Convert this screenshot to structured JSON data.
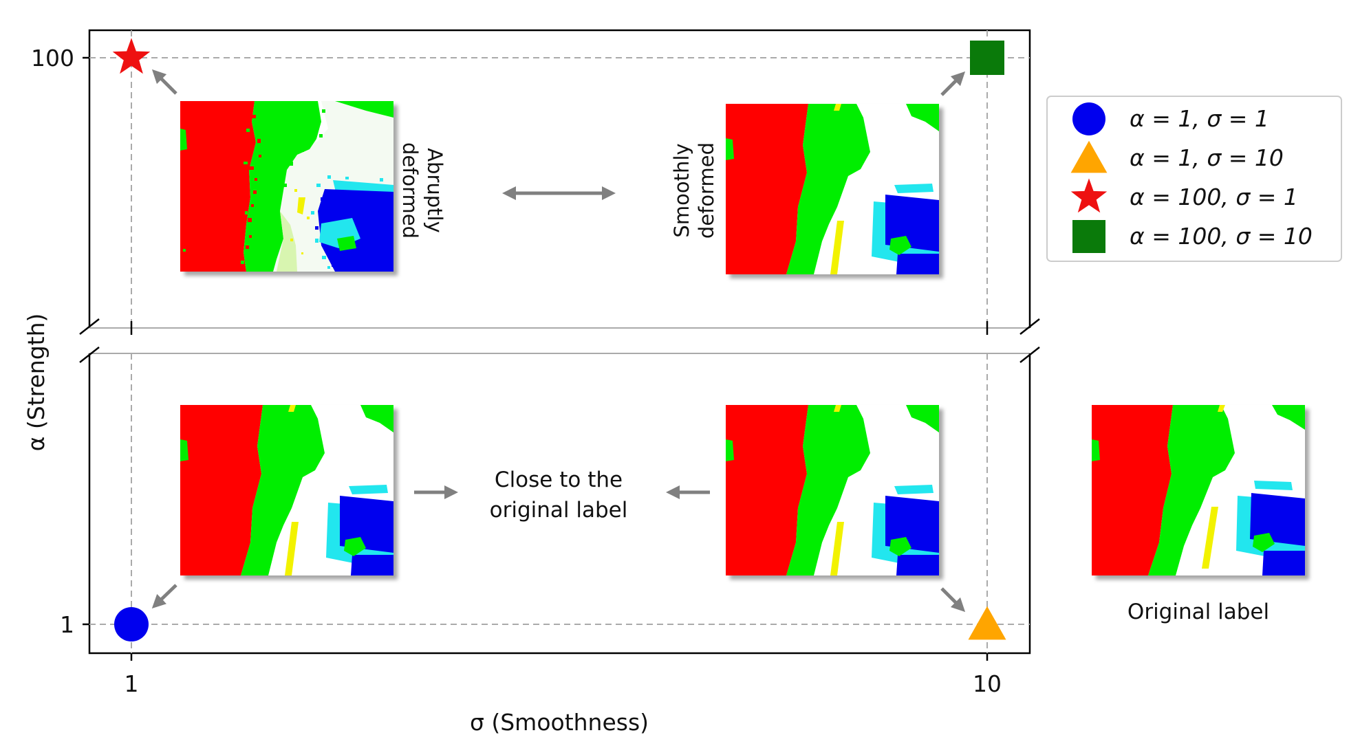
{
  "chart_data": {
    "type": "scatter",
    "xlabel": "σ (Smoothness)",
    "ylabel": "α (Strength)",
    "x_ticks": [
      {
        "value": 1,
        "label": "1"
      },
      {
        "value": 10,
        "label": "10"
      }
    ],
    "y_ticks": [
      {
        "value": 1,
        "label": "1"
      },
      {
        "value": 100,
        "label": "100"
      }
    ],
    "y_axis_broken": true,
    "grid": "dashed reference lines at tick values",
    "legend_position": "right",
    "points": [
      {
        "alpha": 1,
        "sigma": 1,
        "marker": "circle",
        "color": "#0000ee",
        "legend": "α = 1, σ = 1"
      },
      {
        "alpha": 1,
        "sigma": 10,
        "marker": "triangle",
        "color": "#ffa500",
        "legend": "α = 1, σ = 10"
      },
      {
        "alpha": 100,
        "sigma": 1,
        "marker": "star",
        "color": "#ee1111",
        "legend": "α = 100, σ = 1"
      },
      {
        "alpha": 100,
        "sigma": 10,
        "marker": "square",
        "color": "#0a7a0a",
        "legend": "α = 100, σ = 10"
      }
    ],
    "annotations": {
      "abrupt": "Abruptly\ndeformed",
      "smooth": "Smoothly\ndeformed",
      "close_line1": "Close to the",
      "close_line2": "original label",
      "original_caption": "Original label"
    }
  },
  "colors": {
    "class_red": "#ff0000",
    "class_green": "#00ee00",
    "class_blue": "#0000ee",
    "class_cyan": "#22e6ee",
    "class_yellow": "#f2f200",
    "background": "#ffffff",
    "arrow": "#808080",
    "grid": "#aaaaaa"
  }
}
